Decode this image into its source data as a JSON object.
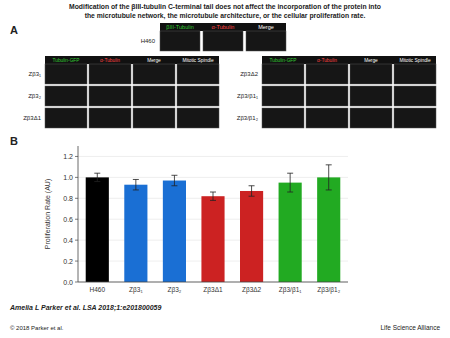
{
  "chart_data": {
    "type": "bar",
    "title": "Modification of the βIII-tubulin C-terminal tail does not affect the incorporation of the protein into\nthe microtubule network, the microtubule architecture, or the cellular proliferation rate.",
    "categories": [
      "H460",
      "Zβ3₁",
      "Zβ3₂",
      "Zβ3Δ1",
      "Zβ3Δ2",
      "Zβ3/β1₁",
      "Zβ3/β1₂"
    ],
    "values": [
      1.0,
      0.93,
      0.97,
      0.82,
      0.87,
      0.95,
      1.0
    ],
    "errors": [
      0.04,
      0.05,
      0.05,
      0.04,
      0.05,
      0.09,
      0.12
    ],
    "colors": [
      "#000000",
      "#1a6fd4",
      "#1a6fd4",
      "#cc2222",
      "#cc2222",
      "#22aa22",
      "#22aa22"
    ],
    "ylabel": "Proliferation Rate (AU)",
    "ylim": [
      0,
      1.3
    ],
    "yticks": [
      {
        "value": 0.0,
        "label": "0.0"
      },
      0.2,
      0.4,
      0.6,
      0.8,
      {
        "value": 1.0,
        "label": "1.0"
      },
      1.2
    ],
    "annotations": [
      {
        "text": "A"
      },
      {
        "text": "B"
      },
      {
        "text": "βIII-Tubulin",
        "color": "#33cc33"
      },
      {
        "text": "α-Tubulin",
        "color": "#ff4444"
      },
      {
        "text": "Merge",
        "color": "#ffffff"
      },
      {
        "text": "H460"
      },
      {
        "text": "Tubulin-GFP",
        "color": "#33cc33"
      },
      {
        "text": "α-Tubulin",
        "color": "#ff4444"
      },
      {
        "text": "Merge",
        "color": "#ffffff"
      },
      {
        "text": "Mitotic Spindle",
        "color": "#ffffff"
      },
      {
        "text": "Tubulin-GFP",
        "color": "#33cc33"
      },
      {
        "text": "α-Tubulin",
        "color": "#ff4444"
      },
      {
        "text": "Merge",
        "color": "#ffffff"
      },
      {
        "text": "Mitotic Spindle",
        "color": "#ffffff"
      },
      {
        "text": "Zβ3₁"
      },
      {
        "text": "Zβ3₂"
      },
      {
        "text": "Zβ3Δ1"
      },
      {
        "text": "Zβ3Δ2"
      },
      {
        "text": "Zβ3/β1₁"
      },
      {
        "text": "Zβ3/β1₂"
      },
      {
        "text": "Amelia L Parker et al. LSA 2018;1:e201800059"
      },
      {
        "text": "© 2018 Parker et al."
      },
      {
        "text": "Life Science Alliance"
      }
    ]
  }
}
